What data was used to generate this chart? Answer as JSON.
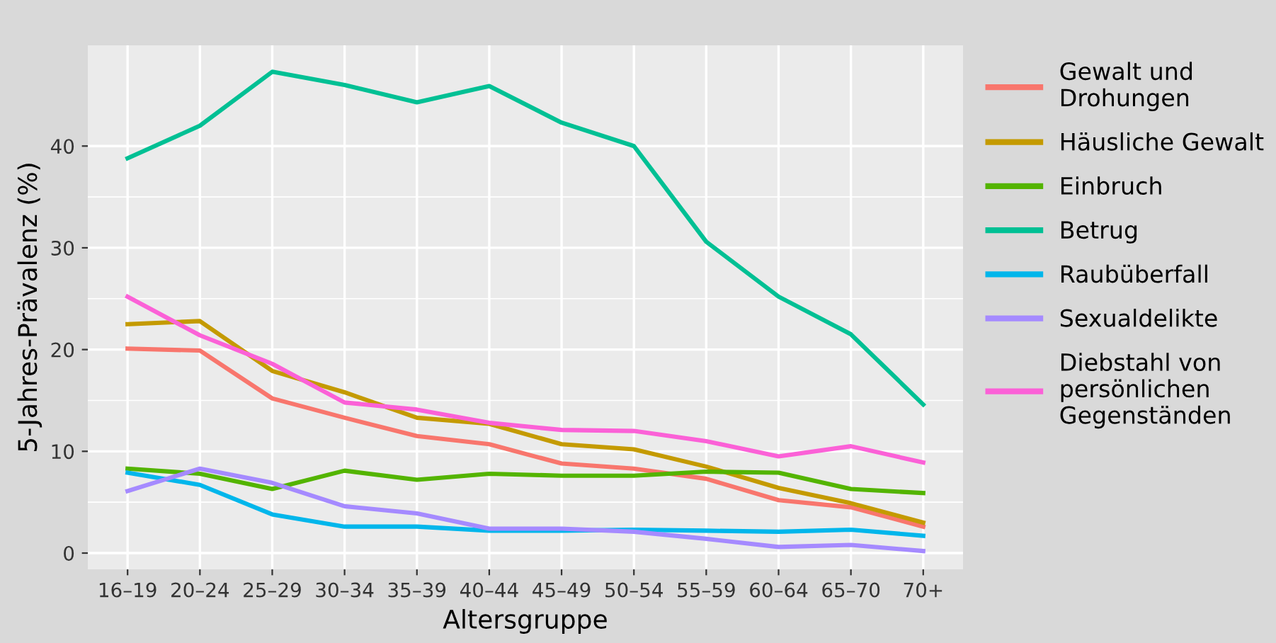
{
  "chart_data": {
    "type": "line",
    "xlabel": "Altersgruppe",
    "ylabel": "5-Jahres-Prävalenz (%)",
    "categories": [
      "16–19",
      "20–24",
      "25–29",
      "30–34",
      "35–39",
      "40–44",
      "45–49",
      "50–54",
      "55–59",
      "60–64",
      "65–70",
      "70+"
    ],
    "ylim": [
      -1.6,
      49.9
    ],
    "yticks": [
      0,
      10,
      20,
      30,
      40
    ],
    "grid": true,
    "legend": "right",
    "line_style": "solid",
    "marker": "none",
    "series": [
      {
        "name": "Gewalt und\nDrohungen",
        "color": "#f8766d",
        "values": [
          20.1,
          19.9,
          15.2,
          13.3,
          11.5,
          10.7,
          8.8,
          8.3,
          7.3,
          5.2,
          4.5,
          2.6
        ]
      },
      {
        "name": "Häusliche Gewalt",
        "color": "#c49a00",
        "values": [
          22.5,
          22.8,
          17.9,
          15.8,
          13.3,
          12.7,
          10.7,
          10.2,
          8.5,
          6.4,
          4.9,
          3.0
        ]
      },
      {
        "name": "Einbruch",
        "color": "#53b400",
        "values": [
          8.3,
          7.8,
          6.3,
          8.1,
          7.2,
          7.8,
          7.6,
          7.6,
          8.0,
          7.9,
          6.3,
          5.9
        ]
      },
      {
        "name": "Betrug",
        "color": "#00c094",
        "values": [
          38.8,
          42.0,
          47.3,
          46.0,
          44.3,
          45.9,
          42.3,
          40.0,
          30.6,
          25.2,
          21.5,
          14.6
        ]
      },
      {
        "name": "Raubüberfall",
        "color": "#00b6eb",
        "values": [
          7.9,
          6.7,
          3.8,
          2.6,
          2.6,
          2.2,
          2.2,
          2.3,
          2.2,
          2.1,
          2.3,
          1.7
        ]
      },
      {
        "name": "Sexualdelikte",
        "color": "#a58aff",
        "values": [
          6.1,
          8.3,
          6.9,
          4.6,
          3.9,
          2.4,
          2.4,
          2.1,
          1.4,
          0.6,
          0.8,
          0.2
        ]
      },
      {
        "name": "Diebstahl von\npersönlichen\nGegenständen",
        "color": "#fb61d7",
        "values": [
          25.2,
          21.4,
          18.6,
          14.8,
          14.1,
          12.8,
          12.1,
          12.0,
          11.0,
          9.5,
          10.5,
          8.9
        ]
      }
    ]
  }
}
